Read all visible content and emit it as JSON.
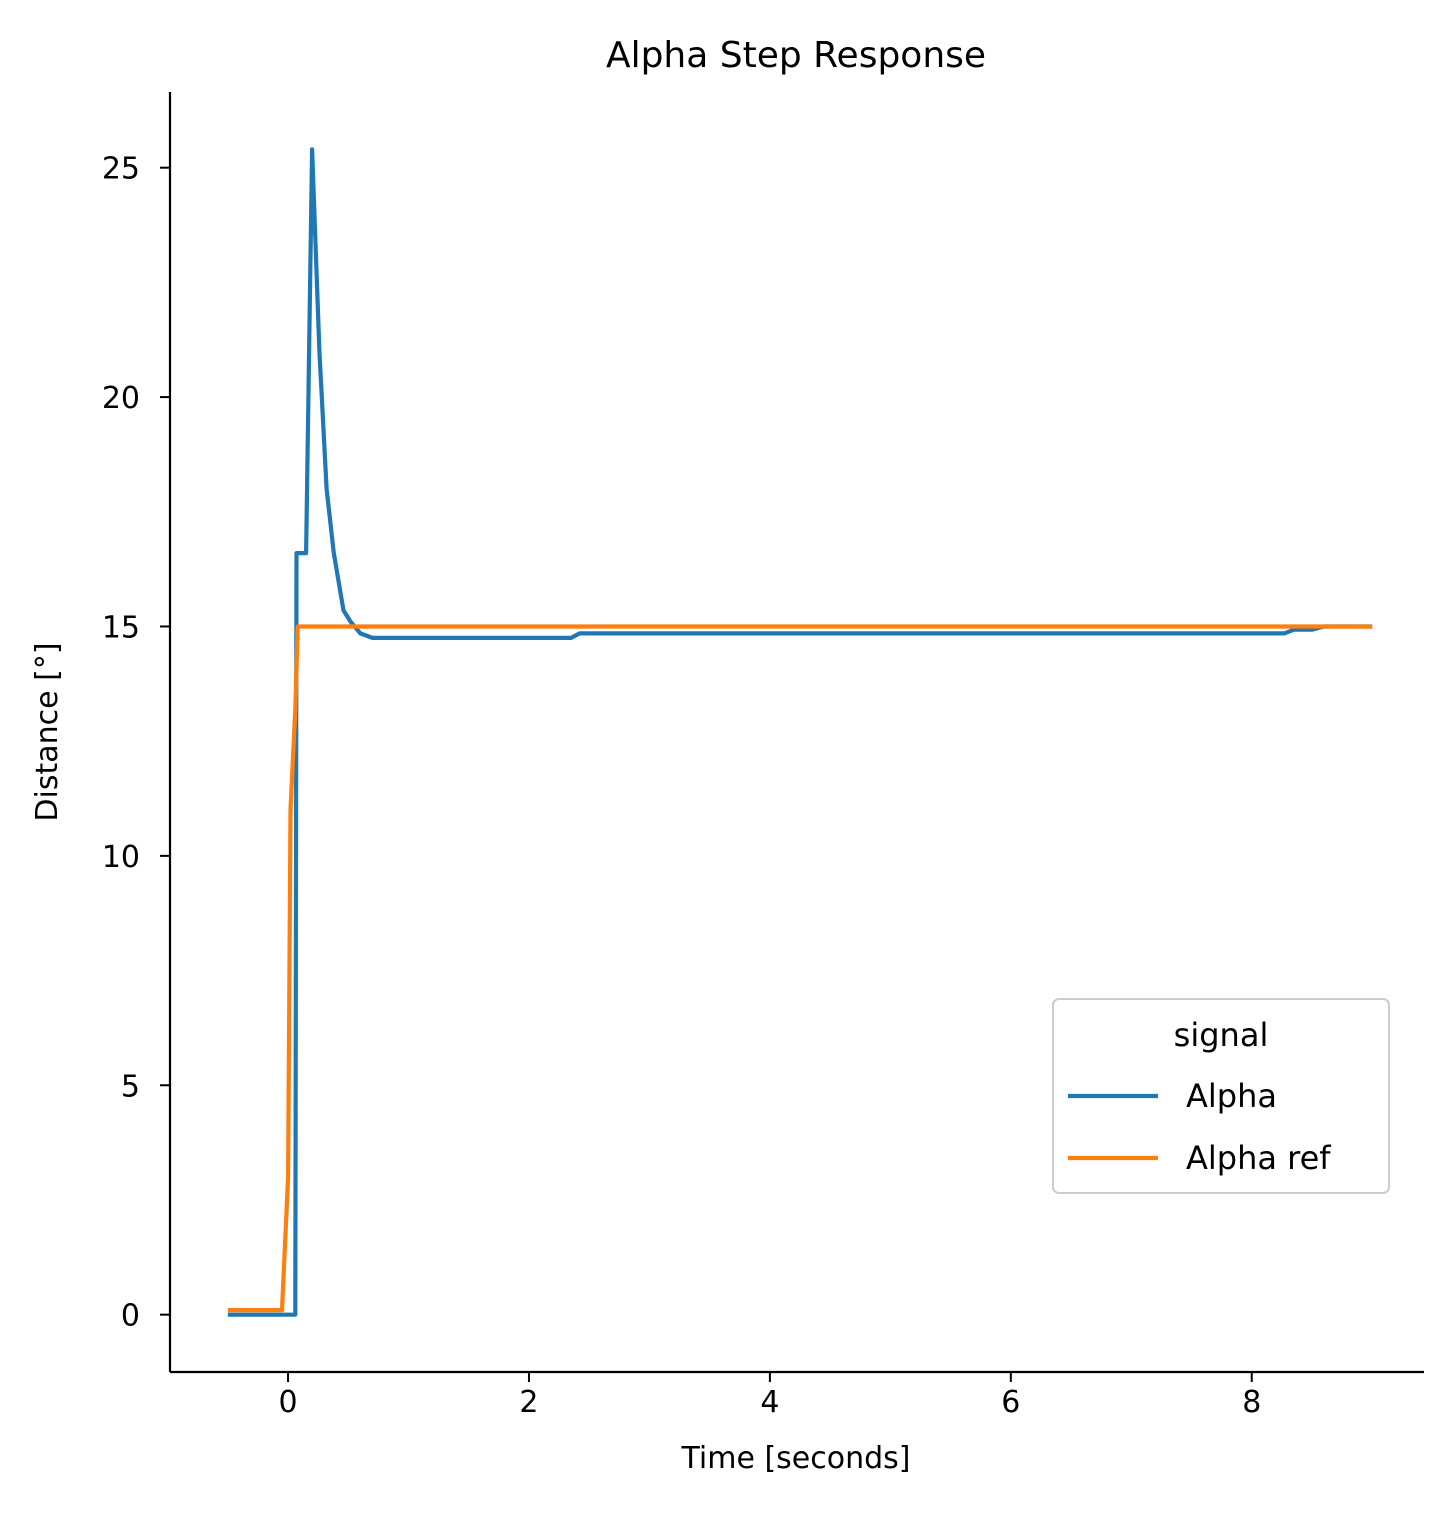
{
  "chart_data": {
    "type": "line",
    "title": "Alpha Step Response",
    "xlabel": "Time [seconds]",
    "ylabel": "Distance [°]",
    "xlim": [
      -0.98,
      9.43
    ],
    "ylim": [
      -1.25,
      26.65
    ],
    "xticks": [
      0,
      2,
      4,
      6,
      8
    ],
    "xtick_labels": [
      "0",
      "2",
      "4",
      "6",
      "8"
    ],
    "yticks": [
      0,
      5,
      10,
      15,
      20,
      25
    ],
    "ytick_labels": [
      "0",
      "5",
      "10",
      "15",
      "20",
      "25"
    ],
    "grid": false,
    "legend": {
      "title": "signal",
      "placement": "center-right"
    },
    "series": [
      {
        "name": "Alpha",
        "color": "#1f77b4",
        "x": [
          -0.5,
          0.0,
          0.02,
          0.03,
          0.06,
          0.07,
          0.13,
          0.15,
          0.2,
          0.26,
          0.32,
          0.38,
          0.46,
          0.52,
          0.6,
          0.7,
          0.9,
          2.0,
          2.35,
          2.42,
          4.0,
          6.0,
          8.0,
          8.27,
          8.35,
          8.5,
          8.6,
          9.0
        ],
        "y": [
          0,
          0,
          0,
          0,
          0,
          16.6,
          16.6,
          16.6,
          25.4,
          21.0,
          18.0,
          16.6,
          15.35,
          15.1,
          14.85,
          14.75,
          14.75,
          14.75,
          14.75,
          14.85,
          14.85,
          14.85,
          14.85,
          14.85,
          14.93,
          14.93,
          15.0,
          15.0
        ]
      },
      {
        "name": "Alpha ref",
        "color": "#ff7f0e",
        "x": [
          -0.5,
          -0.05,
          0.0,
          0.02,
          0.06,
          0.08,
          0.15,
          1.0,
          4.0,
          7.0,
          9.0
        ],
        "y": [
          0.1,
          0.1,
          3.0,
          11.0,
          13.2,
          15.0,
          15.0,
          15.0,
          15.0,
          15.0,
          15.0
        ]
      }
    ]
  }
}
